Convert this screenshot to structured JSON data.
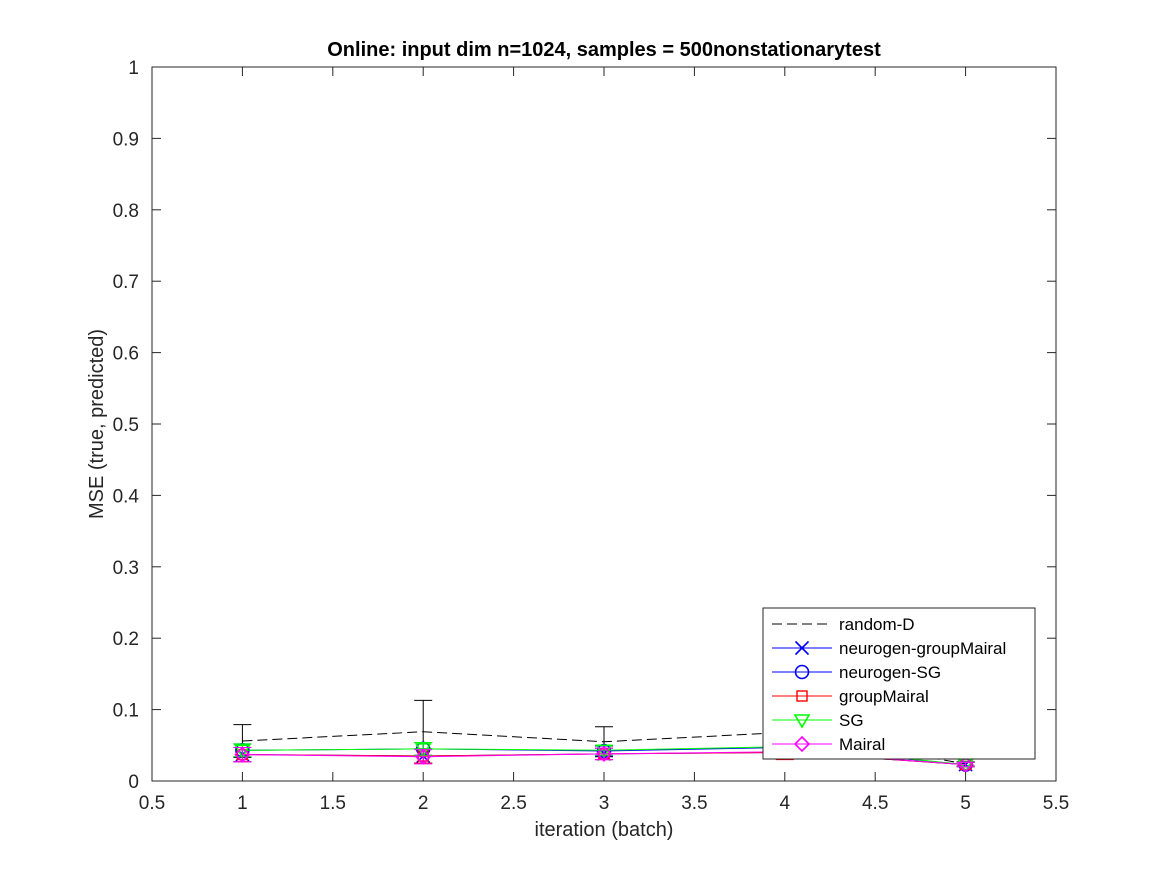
{
  "chart_data": {
    "type": "line",
    "title": "Online:  input dim n=1024, samples = 500nonstationarytest",
    "xlabel": "iteration (batch)",
    "ylabel": "MSE (true, predicted)",
    "xlim": [
      0.5,
      5.5
    ],
    "ylim": [
      0,
      1
    ],
    "xticks": [
      0.5,
      1,
      1.5,
      2,
      2.5,
      3,
      3.5,
      4,
      4.5,
      5,
      5.5
    ],
    "xtick_labels": [
      "0.5",
      "1",
      "1.5",
      "2",
      "2.5",
      "3",
      "3.5",
      "4",
      "4.5",
      "5",
      "5.5"
    ],
    "yticks": [
      0,
      0.1,
      0.2,
      0.3,
      0.4,
      0.5,
      0.6,
      0.7,
      0.8,
      0.9,
      1
    ],
    "ytick_labels": [
      "0",
      "0.1",
      "0.2",
      "0.3",
      "0.4",
      "0.5",
      "0.6",
      "0.7",
      "0.8",
      "0.9",
      "1"
    ],
    "grid": false,
    "legend_position": "bottom-right",
    "x": [
      1,
      2,
      3,
      4,
      5
    ],
    "series": [
      {
        "name": "random-D",
        "color": "#000000",
        "dash": "dashed",
        "marker": "none",
        "values": [
          0.056,
          0.069,
          0.055,
          0.068,
          0.024
        ],
        "error": [
          0.023,
          0.044,
          0.021,
          0.008,
          0.003
        ]
      },
      {
        "name": "neurogen-groupMairal",
        "color": "#0000ff",
        "dash": "solid",
        "marker": "x",
        "values": [
          0.037,
          0.035,
          0.038,
          0.04,
          0.023
        ],
        "error": [
          0.01,
          0.01,
          0.008,
          0.004,
          0.003
        ]
      },
      {
        "name": "neurogen-SG",
        "color": "#0000ff",
        "dash": "solid",
        "marker": "circle",
        "values": [
          0.043,
          0.045,
          0.042,
          0.047,
          0.023
        ],
        "error": [
          0.009,
          0.009,
          0.007,
          0.005,
          0.003
        ]
      },
      {
        "name": "groupMairal",
        "color": "#ff0000",
        "dash": "solid",
        "marker": "square",
        "values": [
          0.037,
          0.035,
          0.038,
          0.04,
          0.023
        ],
        "error": [
          0.01,
          0.01,
          0.008,
          0.01,
          0.003
        ]
      },
      {
        "name": "SG",
        "color": "#00ff00",
        "dash": "solid",
        "marker": "triangle-down",
        "values": [
          0.043,
          0.045,
          0.043,
          0.048,
          0.023
        ],
        "error": [
          0.009,
          0.009,
          0.007,
          0.005,
          0.003
        ]
      },
      {
        "name": "Mairal",
        "color": "#ff00ff",
        "dash": "solid",
        "marker": "diamond",
        "values": [
          0.037,
          0.034,
          0.038,
          0.041,
          0.023
        ],
        "error": [
          0.01,
          0.01,
          0.008,
          0.004,
          0.003
        ]
      }
    ]
  }
}
